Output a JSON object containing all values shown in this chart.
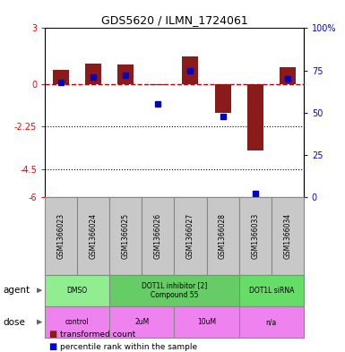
{
  "title": "GDS5620 / ILMN_1724061",
  "samples": [
    "GSM1366023",
    "GSM1366024",
    "GSM1366025",
    "GSM1366026",
    "GSM1366027",
    "GSM1366028",
    "GSM1366033",
    "GSM1366034"
  ],
  "bar_values": [
    0.8,
    1.1,
    1.05,
    -0.05,
    1.5,
    -1.5,
    -3.5,
    0.9
  ],
  "dot_values": [
    68,
    71,
    72,
    55,
    75,
    48,
    2,
    70
  ],
  "ylim_left": [
    -6,
    3
  ],
  "ylim_right": [
    0,
    100
  ],
  "yticks_left": [
    -6,
    -4.5,
    -2.25,
    0,
    3
  ],
  "ytick_labels_left": [
    "-6",
    "-4.5",
    "-2.25",
    "0",
    "3"
  ],
  "yticks_right": [
    0,
    25,
    50,
    75,
    100
  ],
  "ytick_labels_right": [
    "0",
    "25",
    "50",
    "75",
    "100%"
  ],
  "dotted_lines": [
    -2.25,
    -4.5
  ],
  "bar_color": "#8B1A1A",
  "dot_color": "#0000CD",
  "hline_color": "#CC0000",
  "agent_groups": [
    {
      "label": "DMSO",
      "start": 0,
      "end": 2,
      "color": "#90EE90"
    },
    {
      "label": "DOT1L inhibitor [2]\nCompound 55",
      "start": 2,
      "end": 6,
      "color": "#66CC66"
    },
    {
      "label": "DOT1L siRNA",
      "start": 6,
      "end": 8,
      "color": "#66DD66"
    }
  ],
  "dose_groups": [
    {
      "label": "control",
      "start": 0,
      "end": 2,
      "color": "#EE82EE"
    },
    {
      "label": "2uM",
      "start": 2,
      "end": 4,
      "color": "#EE82EE"
    },
    {
      "label": "10uM",
      "start": 4,
      "end": 6,
      "color": "#EE82EE"
    },
    {
      "label": "n/a",
      "start": 6,
      "end": 8,
      "color": "#EE82EE"
    }
  ],
  "agent_label": "agent",
  "dose_label": "dose",
  "legend_bar_label": "transformed count",
  "legend_dot_label": "percentile rank within the sample",
  "sample_bg_color": "#C8C8C8",
  "border_color": "#888888"
}
